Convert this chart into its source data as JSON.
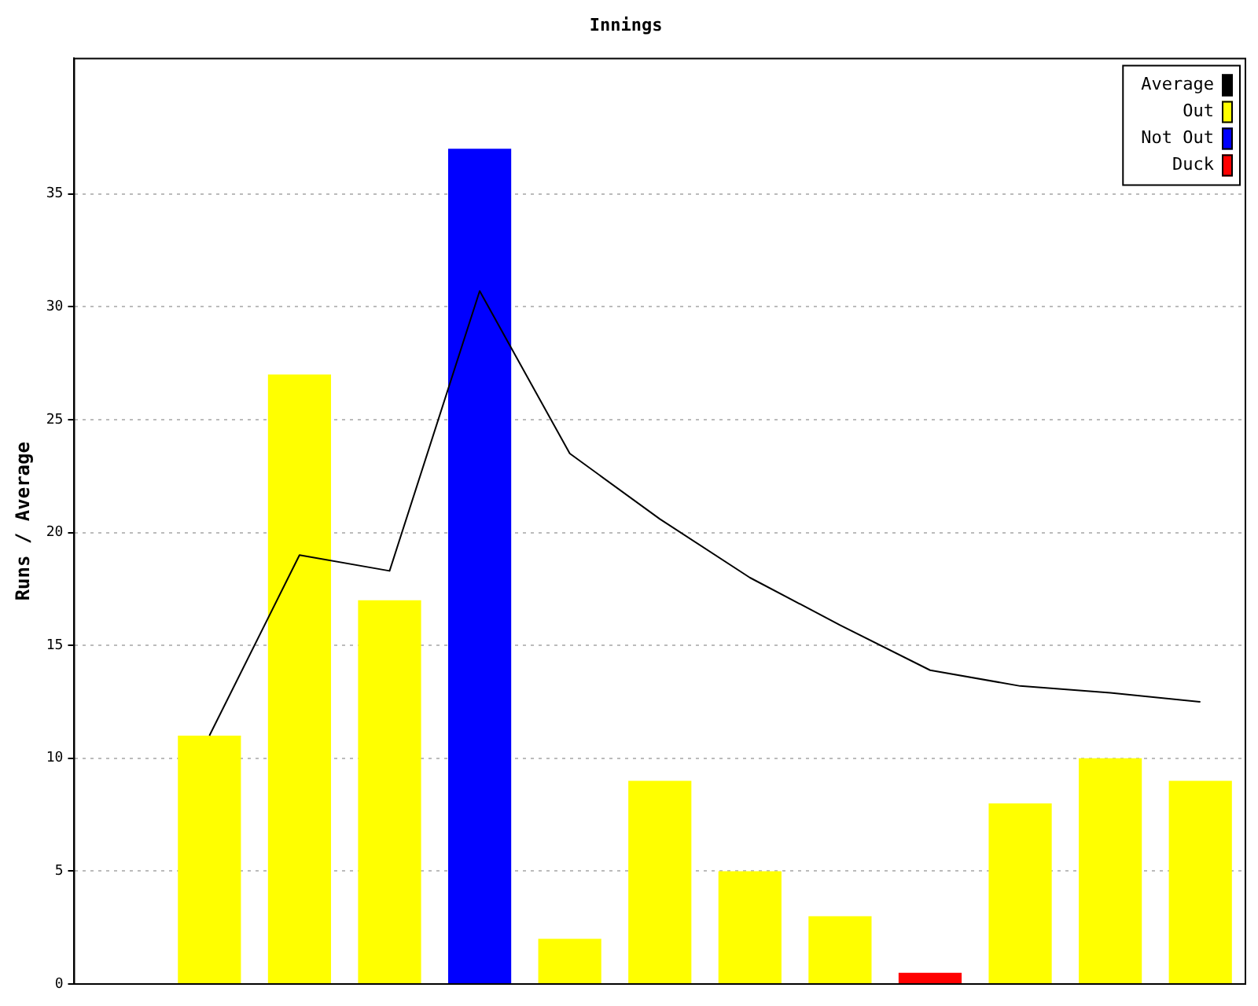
{
  "chart_data": {
    "type": "bar",
    "title": "Innings",
    "ylabel": "Runs / Average",
    "categories": [
      null,
      null,
      null,
      null,
      null,
      null,
      null,
      null,
      null,
      null,
      null,
      null,
      null
    ],
    "series": [
      {
        "name": "Average",
        "type": "line",
        "color": "#000000",
        "values": [
          null,
          11,
          19,
          18.3,
          30.7,
          23.5,
          20.6,
          18,
          15.9,
          13.9,
          13.2,
          12.9,
          12.5
        ]
      },
      {
        "name": "Out",
        "color": "#ffff00",
        "values": [
          null,
          11,
          27,
          17,
          null,
          2,
          9,
          5,
          3,
          null,
          8,
          10,
          9
        ]
      },
      {
        "name": "Not Out",
        "color": "#0000ff",
        "values": [
          null,
          null,
          null,
          null,
          37,
          null,
          null,
          null,
          null,
          null,
          null,
          null,
          null
        ]
      },
      {
        "name": "Duck",
        "color": "#ff0000",
        "values": [
          null,
          null,
          null,
          null,
          null,
          null,
          null,
          null,
          null,
          0.5,
          null,
          null,
          null
        ]
      }
    ],
    "stacked": true,
    "ylim": [
      0,
      41
    ],
    "yticks": [
      0,
      5,
      10,
      15,
      20,
      25,
      30,
      35
    ],
    "grid": "y",
    "legend": "top right",
    "marker": "none"
  }
}
